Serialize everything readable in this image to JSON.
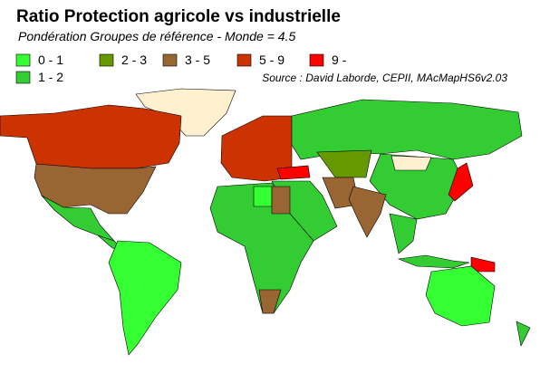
{
  "title": "Ratio Protection agricole vs industrielle",
  "subtitle": "Pondération Groupes de référence - Monde = 4.5",
  "source": "Source : David Laborde, CEPII, MAcMapHS6v2.03",
  "legend": [
    {
      "label": "0 - 1",
      "color": "#33ff33"
    },
    {
      "label": "2 - 3",
      "color": "#669900"
    },
    {
      "label": "3 - 5",
      "color": "#996633"
    },
    {
      "label": "5 - 9",
      "color": "#cc3300"
    },
    {
      "label": "9 -",
      "color": "#ff0000"
    },
    {
      "label": "1 - 2",
      "color": "#33cc33"
    }
  ]
}
